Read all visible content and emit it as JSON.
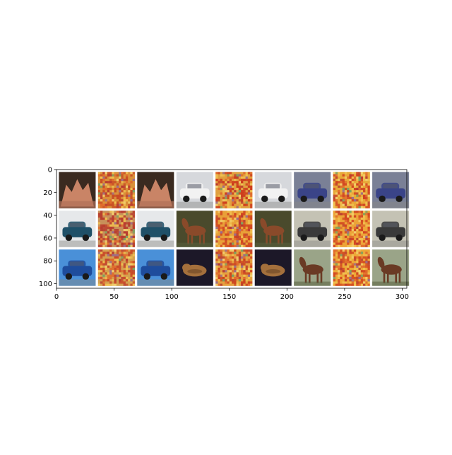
{
  "chart_data": {
    "type": "image_grid",
    "title": "",
    "xlabel": "",
    "ylabel": "",
    "xlim": [
      0,
      304
    ],
    "ylim": [
      104,
      0
    ],
    "x_ticks": [
      0,
      50,
      100,
      150,
      200,
      250,
      300
    ],
    "y_ticks": [
      0,
      20,
      40,
      60,
      80,
      100
    ],
    "x_tick_labels": [
      "0",
      "50",
      "100",
      "150",
      "200",
      "250",
      "300"
    ],
    "y_tick_labels": [
      "0",
      "20",
      "40",
      "60",
      "80",
      "100"
    ],
    "grid": false,
    "legend": "none",
    "grid_layout": {
      "rows": 3,
      "cols": 9,
      "tile_size": 32,
      "padding": 2
    },
    "tiles": [
      {
        "row": 0,
        "col": 0,
        "kind": "photo",
        "subject": "sculpture",
        "bg": "#3a2a20",
        "fg": "#c98466"
      },
      {
        "row": 0,
        "col": 1,
        "kind": "noise",
        "bg": "#d9903a",
        "fg": "#c84a24"
      },
      {
        "row": 0,
        "col": 2,
        "kind": "photo",
        "subject": "sculpture",
        "bg": "#3a2a20",
        "fg": "#c98466"
      },
      {
        "row": 0,
        "col": 3,
        "kind": "photo",
        "subject": "car",
        "bg": "#d6d8dc",
        "fg": "#f2f2f2"
      },
      {
        "row": 0,
        "col": 4,
        "kind": "noise",
        "bg": "#e0a040",
        "fg": "#cc3a1c"
      },
      {
        "row": 0,
        "col": 5,
        "kind": "photo",
        "subject": "car",
        "bg": "#d6d8dc",
        "fg": "#f2f2f2"
      },
      {
        "row": 0,
        "col": 6,
        "kind": "photo",
        "subject": "car",
        "bg": "#7a8096",
        "fg": "#3a4488"
      },
      {
        "row": 0,
        "col": 7,
        "kind": "noise",
        "bg": "#e8a838",
        "fg": "#d04020"
      },
      {
        "row": 0,
        "col": 8,
        "kind": "photo",
        "subject": "car",
        "bg": "#7a8096",
        "fg": "#3a4488"
      },
      {
        "row": 1,
        "col": 0,
        "kind": "photo",
        "subject": "car",
        "bg": "#e6e8ea",
        "fg": "#1f5068"
      },
      {
        "row": 1,
        "col": 1,
        "kind": "noise",
        "bg": "#c8905a",
        "fg": "#b83c2c"
      },
      {
        "row": 1,
        "col": 2,
        "kind": "photo",
        "subject": "car",
        "bg": "#e6e8ea",
        "fg": "#1f5068"
      },
      {
        "row": 1,
        "col": 3,
        "kind": "photo",
        "subject": "horse",
        "bg": "#4a4a2c",
        "fg": "#8a4a2a"
      },
      {
        "row": 1,
        "col": 4,
        "kind": "noise",
        "bg": "#e8a038",
        "fg": "#d04420"
      },
      {
        "row": 1,
        "col": 5,
        "kind": "photo",
        "subject": "horse",
        "bg": "#4a4a2c",
        "fg": "#8a4a2a"
      },
      {
        "row": 1,
        "col": 6,
        "kind": "photo",
        "subject": "car",
        "bg": "#c4c2b4",
        "fg": "#3a3a3a"
      },
      {
        "row": 1,
        "col": 7,
        "kind": "noise",
        "bg": "#eca438",
        "fg": "#d24420"
      },
      {
        "row": 1,
        "col": 8,
        "kind": "photo",
        "subject": "car",
        "bg": "#c4c2b4",
        "fg": "#3a3a3a"
      },
      {
        "row": 2,
        "col": 0,
        "kind": "photo",
        "subject": "truck",
        "bg": "#4a90d8",
        "fg": "#1e4c9c"
      },
      {
        "row": 2,
        "col": 1,
        "kind": "noise",
        "bg": "#d4a050",
        "fg": "#c84828"
      },
      {
        "row": 2,
        "col": 2,
        "kind": "photo",
        "subject": "truck",
        "bg": "#4a90d8",
        "fg": "#1e4c9c"
      },
      {
        "row": 2,
        "col": 3,
        "kind": "photo",
        "subject": "cat",
        "bg": "#1c1828",
        "fg": "#a4703c"
      },
      {
        "row": 2,
        "col": 4,
        "kind": "noise",
        "bg": "#e4a040",
        "fg": "#cc4420"
      },
      {
        "row": 2,
        "col": 5,
        "kind": "photo",
        "subject": "cat",
        "bg": "#1c1828",
        "fg": "#a4703c"
      },
      {
        "row": 2,
        "col": 6,
        "kind": "photo",
        "subject": "horse",
        "bg": "#9aa488",
        "fg": "#6a3a24"
      },
      {
        "row": 2,
        "col": 7,
        "kind": "noise",
        "bg": "#eca838",
        "fg": "#d24820"
      },
      {
        "row": 2,
        "col": 8,
        "kind": "photo",
        "subject": "horse",
        "bg": "#9aa488",
        "fg": "#6a3a24"
      }
    ]
  }
}
